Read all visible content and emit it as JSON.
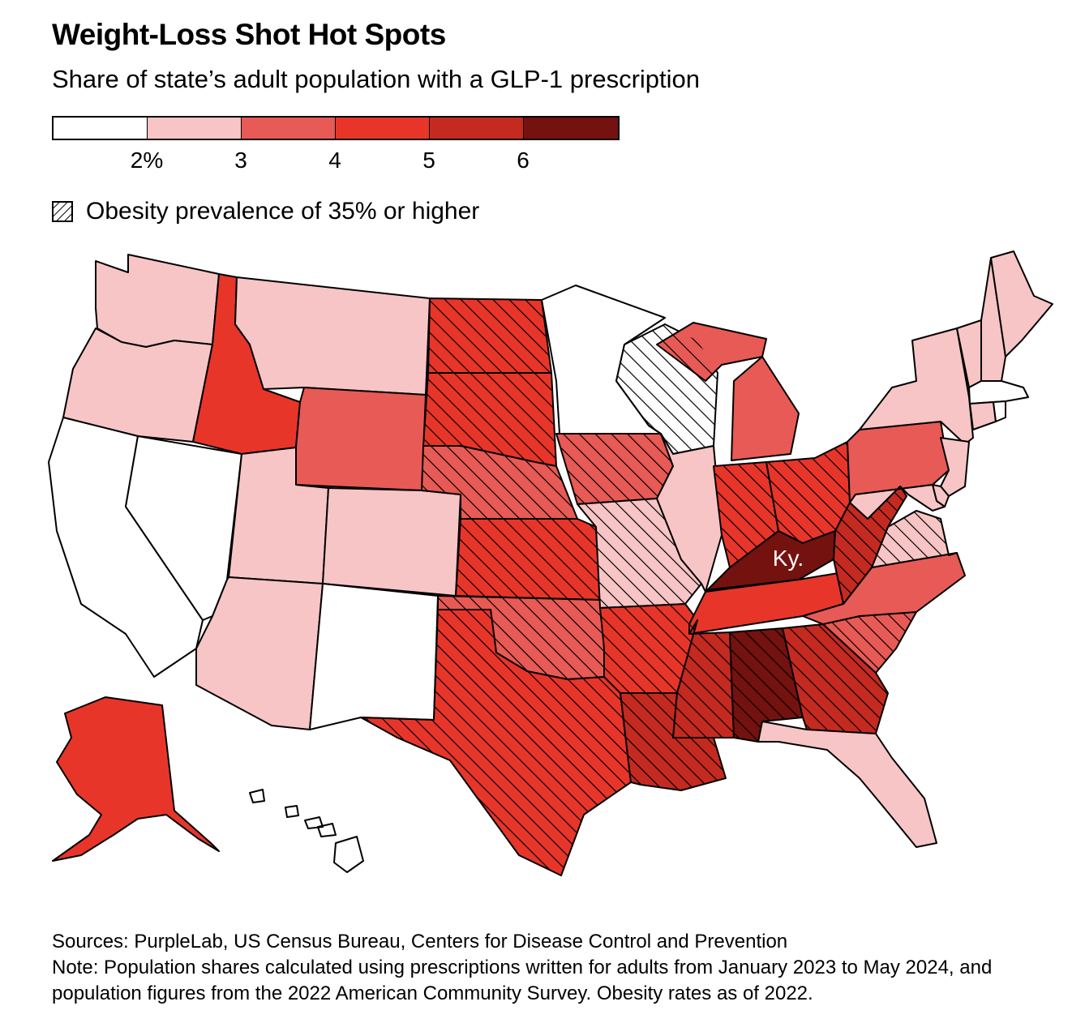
{
  "title": "Weight-Loss Shot Hot Spots",
  "subtitle": "Share of state’s adult population with a GLP-1 prescription",
  "legend": {
    "colors": [
      "#ffffff",
      "#f7c5c5",
      "#e85a55",
      "#e8352a",
      "#c42a20",
      "#74120f"
    ],
    "ticks": [
      "2%",
      "3",
      "4",
      "5",
      "6"
    ],
    "hatch_label": "Obesity prevalence of 35% or higher"
  },
  "chart_data": {
    "type": "choropleth-map",
    "title": "Weight-Loss Shot Hot Spots",
    "subtitle": "Share of state’s adult population with a GLP-1 prescription",
    "bins": [
      {
        "range": "<2%",
        "color": "#ffffff"
      },
      {
        "range": "2–3%",
        "color": "#f7c5c5"
      },
      {
        "range": "3–4%",
        "color": "#e85a55"
      },
      {
        "range": "4–5%",
        "color": "#e8352a"
      },
      {
        "range": "5–6%",
        "color": "#c42a20"
      },
      {
        "range": "≥6%",
        "color": "#74120f"
      }
    ],
    "states": [
      {
        "state": "Washington",
        "bin": 1,
        "obese35": false
      },
      {
        "state": "Oregon",
        "bin": 1,
        "obese35": false
      },
      {
        "state": "California",
        "bin": 0,
        "obese35": false
      },
      {
        "state": "Nevada",
        "bin": 0,
        "obese35": false
      },
      {
        "state": "Idaho",
        "bin": 3,
        "obese35": false
      },
      {
        "state": "Montana",
        "bin": 1,
        "obese35": false
      },
      {
        "state": "Wyoming",
        "bin": 2,
        "obese35": false
      },
      {
        "state": "Utah",
        "bin": 1,
        "obese35": false
      },
      {
        "state": "Colorado",
        "bin": 1,
        "obese35": false
      },
      {
        "state": "Arizona",
        "bin": 1,
        "obese35": false
      },
      {
        "state": "New Mexico",
        "bin": 0,
        "obese35": false
      },
      {
        "state": "North Dakota",
        "bin": 3,
        "obese35": true
      },
      {
        "state": "South Dakota",
        "bin": 3,
        "obese35": true
      },
      {
        "state": "Nebraska",
        "bin": 2,
        "obese35": true
      },
      {
        "state": "Kansas",
        "bin": 3,
        "obese35": true
      },
      {
        "state": "Oklahoma",
        "bin": 2,
        "obese35": true
      },
      {
        "state": "Texas",
        "bin": 3,
        "obese35": true
      },
      {
        "state": "Minnesota",
        "bin": 0,
        "obese35": false
      },
      {
        "state": "Iowa",
        "bin": 2,
        "obese35": true
      },
      {
        "state": "Missouri",
        "bin": 1,
        "obese35": true
      },
      {
        "state": "Arkansas",
        "bin": 3,
        "obese35": true
      },
      {
        "state": "Louisiana",
        "bin": 4,
        "obese35": true
      },
      {
        "state": "Wisconsin",
        "bin": 0,
        "obese35": true
      },
      {
        "state": "Illinois",
        "bin": 1,
        "obese35": false
      },
      {
        "state": "Michigan",
        "bin": 2,
        "obese35": false
      },
      {
        "state": "Indiana",
        "bin": 3,
        "obese35": true
      },
      {
        "state": "Ohio",
        "bin": 3,
        "obese35": true
      },
      {
        "state": "Kentucky",
        "bin": 5,
        "obese35": false
      },
      {
        "state": "Tennessee",
        "bin": 3,
        "obese35": false
      },
      {
        "state": "Mississippi",
        "bin": 4,
        "obese35": true
      },
      {
        "state": "Alabama",
        "bin": 5,
        "obese35": true
      },
      {
        "state": "Georgia",
        "bin": 4,
        "obese35": true
      },
      {
        "state": "Florida",
        "bin": 1,
        "obese35": false
      },
      {
        "state": "South Carolina",
        "bin": 2,
        "obese35": true
      },
      {
        "state": "North Carolina",
        "bin": 2,
        "obese35": false
      },
      {
        "state": "Virginia",
        "bin": 1,
        "obese35": true
      },
      {
        "state": "West Virginia",
        "bin": 4,
        "obese35": true
      },
      {
        "state": "Pennsylvania",
        "bin": 2,
        "obese35": false
      },
      {
        "state": "New York",
        "bin": 1,
        "obese35": false
      },
      {
        "state": "New Jersey",
        "bin": 1,
        "obese35": false
      },
      {
        "state": "Delaware",
        "bin": 1,
        "obese35": false
      },
      {
        "state": "Maryland",
        "bin": 1,
        "obese35": false
      },
      {
        "state": "Vermont",
        "bin": 1,
        "obese35": false
      },
      {
        "state": "New Hampshire",
        "bin": 1,
        "obese35": false
      },
      {
        "state": "Maine",
        "bin": 1,
        "obese35": false
      },
      {
        "state": "Massachusetts",
        "bin": 0,
        "obese35": false
      },
      {
        "state": "Connecticut",
        "bin": 1,
        "obese35": false
      },
      {
        "state": "Rhode Island",
        "bin": 0,
        "obese35": false
      },
      {
        "state": "Alaska",
        "bin": 3,
        "obese35": false
      },
      {
        "state": "Hawaii",
        "bin": 0,
        "obese35": false
      }
    ],
    "annotations": [
      "Ky."
    ]
  },
  "notes": {
    "sources": "Sources: PurpleLab, US Census Bureau, Centers for Disease Control and Prevention",
    "note": "Note: Population shares calculated using prescriptions written for adults from January 2023 to May 2024, and population figures from the 2022 American Community Survey. Obesity rates as of 2022."
  }
}
